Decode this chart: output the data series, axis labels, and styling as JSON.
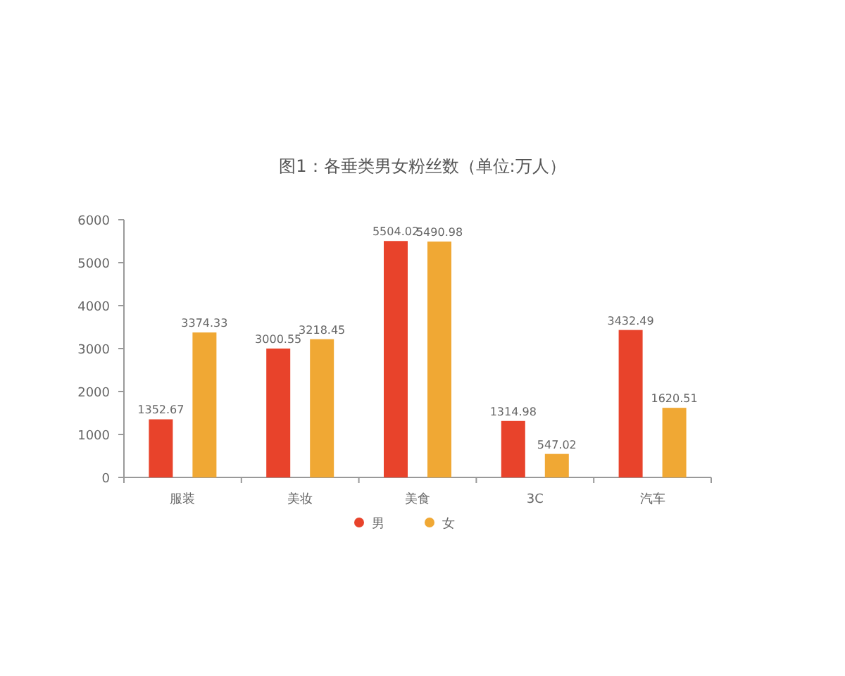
{
  "chart_data": {
    "type": "bar",
    "title": "图1：各垂类男女粉丝数（单位:万人）",
    "categories": [
      "服装",
      "美妆",
      "美食",
      "3C",
      "汽车"
    ],
    "series": [
      {
        "name": "男",
        "color": "#e8432b",
        "values": [
          1352.67,
          3000.55,
          5504.02,
          1314.98,
          3432.49
        ]
      },
      {
        "name": "女",
        "color": "#f0a834",
        "values": [
          3374.33,
          3218.45,
          5490.98,
          547.02,
          1620.51
        ]
      }
    ],
    "ylim": [
      0,
      6000
    ],
    "yticks": [
      0,
      1000,
      2000,
      3000,
      4000,
      5000,
      6000
    ],
    "data_labels": true,
    "legend": "bottom",
    "grid": false
  }
}
